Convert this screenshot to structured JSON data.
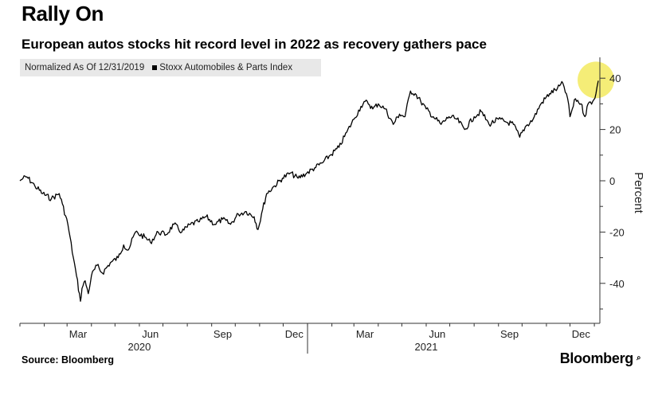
{
  "chart_data": {
    "type": "line",
    "title": "Rally On",
    "subtitle": "European autos stocks hit record level in 2022 as recovery gathers pace",
    "legend": [
      "Normalized As Of 12/31/2019",
      "Stoxx Automobiles & Parts Index"
    ],
    "ylabel": "Percent",
    "ylim": [
      -56,
      48
    ],
    "yticks": [
      -40,
      -20,
      0,
      20,
      40
    ],
    "xlim": [
      "2020-01-01",
      "2022-01-08"
    ],
    "xticks": [
      {
        "date": "2020-03-15",
        "label": "Mar"
      },
      {
        "date": "2020-06-15",
        "label": "Jun"
      },
      {
        "date": "2020-09-15",
        "label": "Sep"
      },
      {
        "date": "2020-12-15",
        "label": "Dec"
      },
      {
        "date": "2021-03-15",
        "label": "Mar"
      },
      {
        "date": "2021-06-15",
        "label": "Jun"
      },
      {
        "date": "2021-09-15",
        "label": "Sep"
      },
      {
        "date": "2021-12-15",
        "label": "Dec"
      }
    ],
    "year_labels": [
      {
        "date": "2020-06-01",
        "label": "2020"
      },
      {
        "date": "2021-06-01",
        "label": "2021"
      }
    ],
    "grid": false,
    "highlight": {
      "date": "2022-01-05",
      "value": 39,
      "color": "#f3ea5f"
    },
    "series": [
      {
        "name": "Stoxx Automobiles & Parts Index",
        "color": "#000000",
        "points": [
          [
            "2020-01-01",
            0
          ],
          [
            "2020-01-05",
            1
          ],
          [
            "2020-01-10",
            1.5
          ],
          [
            "2020-01-20",
            -2
          ],
          [
            "2020-01-30",
            -5
          ],
          [
            "2020-02-10",
            -7
          ],
          [
            "2020-02-20",
            -5
          ],
          [
            "2020-02-24",
            -9
          ],
          [
            "2020-03-02",
            -17
          ],
          [
            "2020-03-09",
            -30
          ],
          [
            "2020-03-13",
            -37
          ],
          [
            "2020-03-18",
            -47
          ],
          [
            "2020-03-20",
            -42
          ],
          [
            "2020-03-24",
            -39
          ],
          [
            "2020-03-28",
            -44
          ],
          [
            "2020-04-01",
            -37
          ],
          [
            "2020-04-08",
            -33
          ],
          [
            "2020-04-15",
            -36
          ],
          [
            "2020-04-25",
            -32
          ],
          [
            "2020-05-05",
            -30
          ],
          [
            "2020-05-12",
            -25
          ],
          [
            "2020-05-18",
            -27
          ],
          [
            "2020-05-27",
            -20
          ],
          [
            "2020-06-08",
            -22
          ],
          [
            "2020-06-15",
            -24
          ],
          [
            "2020-06-25",
            -20
          ],
          [
            "2020-07-05",
            -21
          ],
          [
            "2020-07-15",
            -17
          ],
          [
            "2020-07-25",
            -20
          ],
          [
            "2020-08-05",
            -17
          ],
          [
            "2020-08-15",
            -16
          ],
          [
            "2020-08-25",
            -14
          ],
          [
            "2020-09-05",
            -17
          ],
          [
            "2020-09-15",
            -15
          ],
          [
            "2020-09-25",
            -17
          ],
          [
            "2020-10-05",
            -13
          ],
          [
            "2020-10-15",
            -12
          ],
          [
            "2020-10-25",
            -14
          ],
          [
            "2020-10-30",
            -19
          ],
          [
            "2020-11-05",
            -11
          ],
          [
            "2020-11-10",
            -5
          ],
          [
            "2020-11-20",
            -2
          ],
          [
            "2020-11-30",
            1
          ],
          [
            "2020-12-10",
            3
          ],
          [
            "2020-12-20",
            1
          ],
          [
            "2020-12-31",
            3
          ],
          [
            "2021-01-10",
            5
          ],
          [
            "2021-01-20",
            7
          ],
          [
            "2021-01-30",
            10
          ],
          [
            "2021-02-10",
            13
          ],
          [
            "2021-02-20",
            19
          ],
          [
            "2021-03-01",
            24
          ],
          [
            "2021-03-10",
            29
          ],
          [
            "2021-03-18",
            31
          ],
          [
            "2021-03-25",
            28
          ],
          [
            "2021-04-01",
            30
          ],
          [
            "2021-04-10",
            28
          ],
          [
            "2021-04-20",
            22
          ],
          [
            "2021-04-28",
            26
          ],
          [
            "2021-05-05",
            25
          ],
          [
            "2021-05-12",
            35
          ],
          [
            "2021-05-18",
            34
          ],
          [
            "2021-05-25",
            31
          ],
          [
            "2021-06-01",
            28
          ],
          [
            "2021-06-10",
            25
          ],
          [
            "2021-06-20",
            22
          ],
          [
            "2021-06-30",
            25
          ],
          [
            "2021-07-10",
            24
          ],
          [
            "2021-07-20",
            20
          ],
          [
            "2021-08-01",
            25
          ],
          [
            "2021-08-10",
            27
          ],
          [
            "2021-08-20",
            22
          ],
          [
            "2021-09-01",
            24
          ],
          [
            "2021-09-10",
            23
          ],
          [
            "2021-09-20",
            22
          ],
          [
            "2021-09-28",
            17
          ],
          [
            "2021-10-05",
            21
          ],
          [
            "2021-10-15",
            24
          ],
          [
            "2021-10-25",
            30
          ],
          [
            "2021-11-05",
            34
          ],
          [
            "2021-11-15",
            36
          ],
          [
            "2021-11-22",
            38
          ],
          [
            "2021-11-28",
            32
          ],
          [
            "2021-12-01",
            25
          ],
          [
            "2021-12-08",
            32
          ],
          [
            "2021-12-15",
            30
          ],
          [
            "2021-12-20",
            25
          ],
          [
            "2021-12-24",
            30
          ],
          [
            "2021-12-30",
            31
          ],
          [
            "2022-01-03",
            34
          ],
          [
            "2022-01-06",
            39
          ]
        ]
      }
    ]
  },
  "header": {
    "title": "Rally On",
    "subtitle": "European autos stocks hit record level in 2022 as recovery gathers pace"
  },
  "legend": {
    "norm_label": "Normalized As Of 12/31/2019",
    "series_label": "Stoxx Automobiles & Parts Index"
  },
  "footer": {
    "source": "Source: Bloomberg",
    "brand": "Bloomberg",
    "brand_mark": "⌕"
  }
}
